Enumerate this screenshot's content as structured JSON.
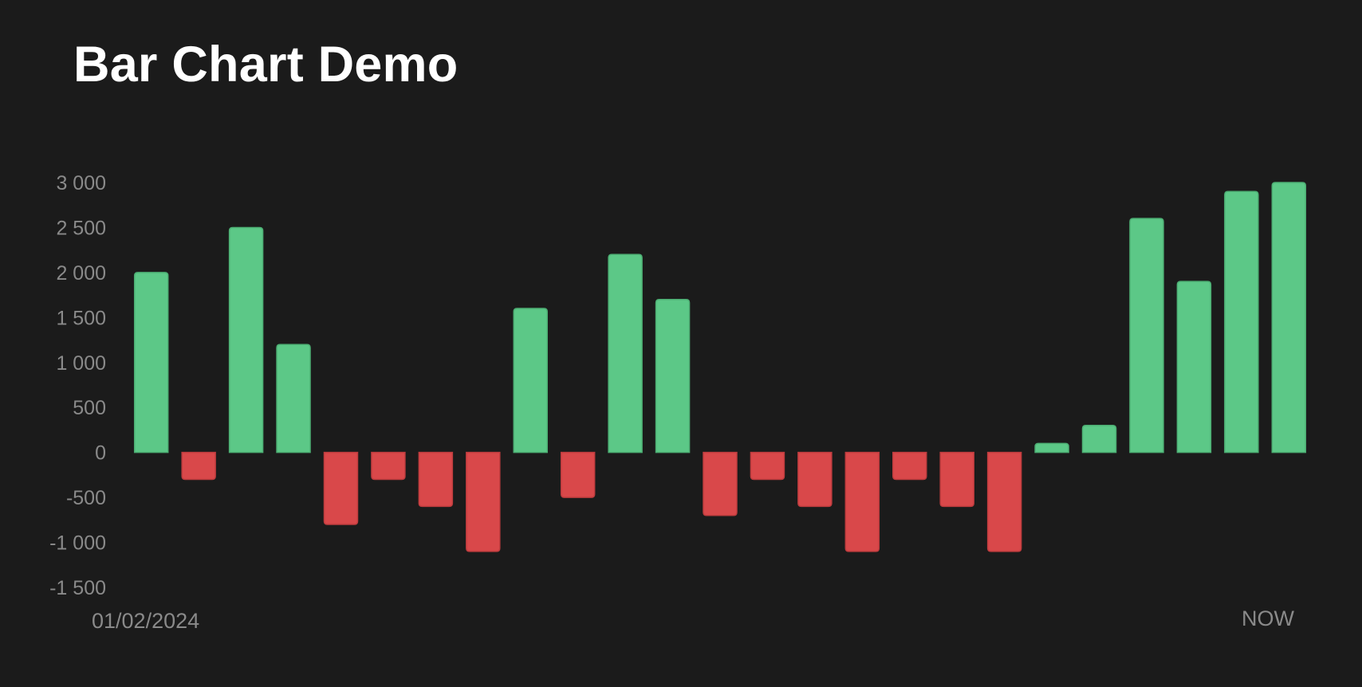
{
  "chart_data": {
    "type": "bar",
    "title": "Bar Chart Demo",
    "x_start_label": "01/02/2024",
    "x_end_label": "NOW",
    "values": [
      2000,
      -300,
      2500,
      1200,
      -800,
      -300,
      -600,
      -1100,
      1600,
      -500,
      2200,
      1700,
      -700,
      -300,
      -600,
      -1100,
      -300,
      -600,
      -1100,
      100,
      300,
      2600,
      1900,
      2900,
      3000
    ],
    "ylim": [
      -1500,
      3000
    ],
    "yticks": [
      3000,
      2500,
      2000,
      1500,
      1000,
      500,
      0,
      -500,
      -1000,
      -1500
    ],
    "ytick_labels": [
      "3 000",
      "2 500",
      "2 000",
      "1 500",
      "1 000",
      "500",
      "0",
      "-500",
      "-1 000",
      "-1 500"
    ],
    "grid": false,
    "legend": "none",
    "colors": {
      "positive": "#5cc887",
      "negative": "#d9484a",
      "background": "#1b1b1b",
      "text": "#8a8a8a",
      "title": "#ffffff"
    }
  }
}
